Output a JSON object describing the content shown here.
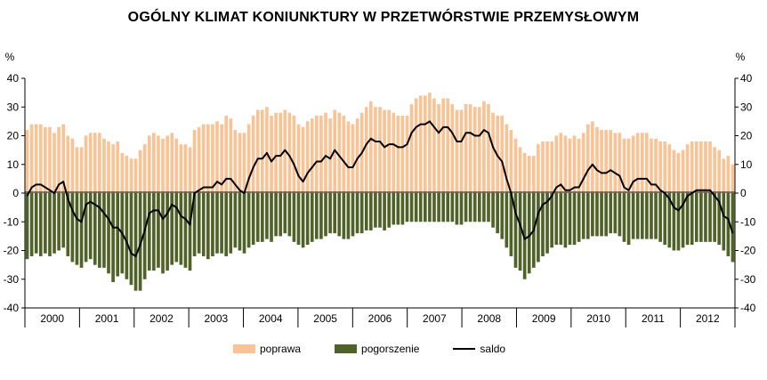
{
  "chart_data": {
    "type": "bar",
    "title": "OGÓLNY KLIMAT KONIUNKTURY W PRZETWÓRSTWIE PRZEMYSŁOWYM",
    "ylabel_left": "%",
    "ylabel_right": "%",
    "ylim": [
      -40,
      40
    ],
    "yticks": [
      40,
      30,
      20,
      10,
      0,
      -10,
      -20,
      -30,
      -40
    ],
    "years": [
      "2000",
      "2001",
      "2002",
      "2003",
      "2004",
      "2005",
      "2006",
      "2007",
      "2008",
      "2009",
      "2010",
      "2011",
      "2012"
    ],
    "grid": false,
    "legend_position": "bottom",
    "colors": {
      "poprawa": "#f9c396",
      "pogorszenie": "#4f6228",
      "saldo": "#000000"
    },
    "series": [
      {
        "name": "poprawa",
        "type": "bar",
        "values": [
          22,
          24,
          24,
          24,
          23,
          23,
          21,
          23,
          24,
          20,
          19,
          16,
          16,
          20,
          21,
          21,
          21,
          19,
          18,
          17,
          18,
          14,
          13,
          12,
          12,
          15,
          17,
          20,
          21,
          20,
          19,
          20,
          21,
          19,
          17,
          17,
          16,
          22,
          23,
          24,
          24,
          24,
          25,
          24,
          27,
          26,
          22,
          21,
          21,
          24,
          27,
          29,
          29,
          30,
          27,
          28,
          28,
          29,
          28,
          27,
          24,
          23,
          25,
          26,
          27,
          27,
          28,
          26,
          29,
          28,
          27,
          25,
          24,
          26,
          28,
          30,
          32,
          30,
          30,
          29,
          29,
          28,
          27,
          27,
          27,
          31,
          33,
          34,
          34,
          35,
          33,
          31,
          33,
          33,
          31,
          29,
          29,
          31,
          31,
          30,
          30,
          32,
          31,
          28,
          27,
          27,
          24,
          22,
          19,
          16,
          14,
          13,
          13,
          17,
          18,
          18,
          18,
          20,
          21,
          20,
          19,
          20,
          19,
          21,
          24,
          25,
          23,
          22,
          22,
          22,
          21,
          21,
          19,
          19,
          20,
          21,
          21,
          21,
          19,
          19,
          18,
          18,
          17,
          15,
          14,
          15,
          17,
          18,
          18,
          18,
          18,
          18,
          16,
          15,
          12,
          13,
          10
        ]
      },
      {
        "name": "pogorszenie",
        "type": "bar",
        "values": [
          -23,
          -22,
          -21,
          -22,
          -21,
          -22,
          -21,
          -20,
          -19,
          -22,
          -24,
          -25,
          -26,
          -24,
          -23,
          -25,
          -26,
          -26,
          -28,
          -31,
          -29,
          -28,
          -30,
          -32,
          -34,
          -34,
          -30,
          -27,
          -27,
          -26,
          -28,
          -27,
          -25,
          -24,
          -25,
          -26,
          -27,
          -22,
          -21,
          -22,
          -23,
          -22,
          -21,
          -21,
          -22,
          -21,
          -19,
          -20,
          -21,
          -19,
          -18,
          -17,
          -17,
          -16,
          -17,
          -15,
          -15,
          -14,
          -15,
          -17,
          -18,
          -19,
          -18,
          -17,
          -16,
          -16,
          -15,
          -14,
          -14,
          -15,
          -16,
          -16,
          -15,
          -14,
          -14,
          -13,
          -13,
          -12,
          -12,
          -13,
          -12,
          -11,
          -11,
          -11,
          -10,
          -10,
          -10,
          -10,
          -10,
          -10,
          -10,
          -10,
          -10,
          -10,
          -10,
          -11,
          -11,
          -10,
          -10,
          -10,
          -10,
          -10,
          -10,
          -12,
          -14,
          -16,
          -19,
          -22,
          -26,
          -27,
          -30,
          -28,
          -26,
          -24,
          -22,
          -21,
          -19,
          -18,
          -18,
          -19,
          -18,
          -18,
          -17,
          -16,
          -16,
          -15,
          -15,
          -15,
          -15,
          -14,
          -14,
          -15,
          -17,
          -18,
          -16,
          -16,
          -16,
          -16,
          -16,
          -16,
          -17,
          -18,
          -19,
          -20,
          -20,
          -19,
          -18,
          -18,
          -17,
          -17,
          -17,
          -17,
          -17,
          -18,
          -20,
          -22,
          -24
        ]
      },
      {
        "name": "saldo",
        "type": "line",
        "values": [
          -1,
          2,
          3,
          3,
          2,
          1,
          0,
          3,
          4,
          -2,
          -6,
          -9,
          -10,
          -4,
          -3,
          -4,
          -5,
          -7,
          -9,
          -12,
          -12,
          -14,
          -17,
          -21,
          -22,
          -18,
          -13,
          -7,
          -6,
          -6,
          -9,
          -7,
          -4,
          -5,
          -8,
          -9,
          -11,
          0,
          1,
          2,
          2,
          2,
          4,
          3,
          5,
          5,
          3,
          1,
          0,
          5,
          9,
          12,
          12,
          14,
          11,
          13,
          13,
          15,
          13,
          10,
          6,
          4,
          7,
          9,
          11,
          11,
          13,
          12,
          15,
          13,
          11,
          9,
          9,
          12,
          14,
          17,
          19,
          18,
          18,
          16,
          17,
          17,
          16,
          16,
          17,
          21,
          23,
          24,
          24,
          25,
          23,
          21,
          23,
          23,
          21,
          18,
          18,
          21,
          21,
          20,
          20,
          22,
          21,
          16,
          13,
          11,
          5,
          0,
          -7,
          -11,
          -16,
          -15,
          -13,
          -7,
          -4,
          -3,
          -1,
          2,
          3,
          1,
          1,
          2,
          2,
          5,
          8,
          10,
          8,
          7,
          7,
          8,
          7,
          6,
          2,
          1,
          4,
          5,
          5,
          5,
          3,
          3,
          1,
          0,
          -2,
          -5,
          -6,
          -4,
          -1,
          0,
          1,
          1,
          1,
          1,
          -1,
          -3,
          -8,
          -9,
          -14
        ]
      }
    ]
  }
}
